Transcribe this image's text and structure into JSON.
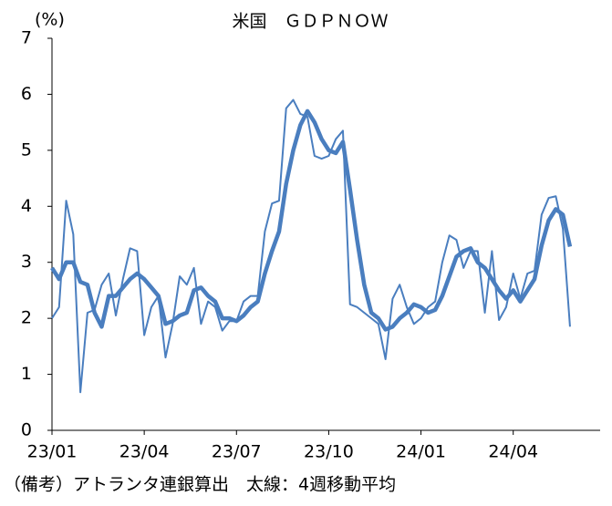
{
  "chart_data": {
    "type": "line",
    "title": "米国　ＧＤＰＮＯＷ",
    "y_unit": "(%)",
    "note": "（備考）アトランタ連銀算出　太線：4週移動平均",
    "categories": [
      "23/01",
      null,
      null,
      null,
      null,
      null,
      null,
      null,
      null,
      null,
      null,
      null,
      null,
      "23/04",
      null,
      null,
      null,
      null,
      null,
      null,
      null,
      null,
      null,
      null,
      null,
      null,
      "23/07",
      null,
      null,
      null,
      null,
      null,
      null,
      null,
      null,
      null,
      null,
      null,
      null,
      "23/10",
      null,
      null,
      null,
      null,
      null,
      null,
      null,
      null,
      null,
      null,
      null,
      null,
      "24/01",
      null,
      null,
      null,
      null,
      null,
      null,
      null,
      null,
      null,
      null,
      null,
      null,
      "24/04",
      null,
      null,
      null,
      null,
      null,
      null,
      null,
      null
    ],
    "series": [
      {
        "color": "#4a7ebf",
        "width": 2,
        "values": [
          2.0,
          2.2,
          4.1,
          3.5,
          0.68,
          2.1,
          2.15,
          2.6,
          2.8,
          2.05,
          2.7,
          3.25,
          3.2,
          1.7,
          2.2,
          2.4,
          1.3,
          1.9,
          2.75,
          2.6,
          2.9,
          1.9,
          2.3,
          2.2,
          1.78,
          1.95,
          1.95,
          2.3,
          2.4,
          2.4,
          3.55,
          4.05,
          4.1,
          5.75,
          5.9,
          5.65,
          5.6,
          4.9,
          4.85,
          4.9,
          5.2,
          5.35,
          2.25,
          2.2,
          2.1,
          2.0,
          1.9,
          1.27,
          2.35,
          2.6,
          2.2,
          1.9,
          2.0,
          2.2,
          2.3,
          3.0,
          3.48,
          3.4,
          2.9,
          3.2,
          3.2,
          2.1,
          3.2,
          1.97,
          2.2,
          2.8,
          2.35,
          2.8,
          2.85,
          3.85,
          4.15,
          4.18,
          3.6,
          1.85
        ]
      },
      {
        "color": "#4a7ebf",
        "width": 4.5,
        "values": [
          2.9,
          2.7,
          3.0,
          3.0,
          2.65,
          2.6,
          2.1,
          1.85,
          2.4,
          2.4,
          2.55,
          2.7,
          2.8,
          2.7,
          2.55,
          2.4,
          1.9,
          1.95,
          2.05,
          2.1,
          2.5,
          2.55,
          2.4,
          2.3,
          2.0,
          2.0,
          1.95,
          2.05,
          2.2,
          2.3,
          2.8,
          3.2,
          3.55,
          4.4,
          5.0,
          5.45,
          5.7,
          5.5,
          5.2,
          5.0,
          4.95,
          5.15,
          4.3,
          3.4,
          2.6,
          2.1,
          2.0,
          1.8,
          1.85,
          2.0,
          2.1,
          2.25,
          2.2,
          2.1,
          2.15,
          2.4,
          2.75,
          3.1,
          3.2,
          3.25,
          3.0,
          2.9,
          2.7,
          2.5,
          2.35,
          2.5,
          2.3,
          2.5,
          2.7,
          3.3,
          3.75,
          3.95,
          3.85,
          3.28
        ]
      }
    ],
    "ylim": [
      0,
      7
    ],
    "yticks": [
      0,
      1,
      2,
      3,
      4,
      5,
      6,
      7
    ]
  }
}
